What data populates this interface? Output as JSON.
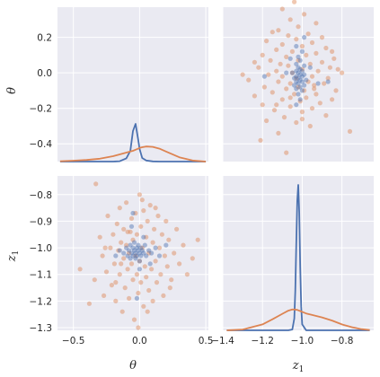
{
  "chart_data": {
    "type": "pairplot",
    "variables": [
      {
        "key": "theta",
        "label": "θ",
        "sub": ""
      },
      {
        "key": "z1",
        "label": "z",
        "sub": "1"
      }
    ],
    "series": [
      {
        "name": "",
        "color": "#4c72b0"
      },
      {
        "name": "",
        "color": "#dd8452"
      }
    ],
    "axes": {
      "theta": {
        "range": [
          -0.62,
          0.52
        ],
        "ticks": [
          -0.5,
          0.0,
          0.5
        ],
        "tick_labels": [
          "−0.5",
          "0.0",
          "0.5"
        ],
        "ylim": [
          -0.5,
          0.37
        ],
        "yticks": [
          -0.4,
          -0.2,
          0.0,
          0.2
        ],
        "ytick_labels": [
          "−0.4",
          "−0.2",
          "0.0",
          "0.2"
        ]
      },
      "z1": {
        "range": [
          -1.4,
          -0.64
        ],
        "ticks": [
          -1.4,
          -1.2,
          -1.0,
          -0.8
        ],
        "tick_labels": [
          "−1.4",
          "−1.2",
          "−1.0",
          "−0.8"
        ],
        "ylim": [
          -1.31,
          -0.73
        ],
        "yticks": [
          -1.3,
          -1.2,
          -1.1,
          -1.0,
          -0.9,
          -0.8
        ],
        "ytick_labels": [
          "−1.3",
          "−1.2",
          "−1.1",
          "−1.0",
          "−0.9",
          "−0.8"
        ]
      }
    },
    "kde_theta": {
      "x": [
        -0.6,
        -0.5,
        -0.4,
        -0.3,
        -0.2,
        -0.15,
        -0.1,
        -0.07,
        -0.05,
        -0.03,
        -0.01,
        0.0,
        0.02,
        0.05,
        0.1,
        0.15,
        0.2,
        0.3,
        0.4,
        0.5
      ],
      "series": [
        {
          "name": "",
          "density": [
            0,
            0,
            0,
            0,
            0,
            0.1,
            0.9,
            3.0,
            8.5,
            10.5,
            6.0,
            3.5,
            1.0,
            0.3,
            0.05,
            0,
            0,
            0,
            0,
            0
          ]
        },
        {
          "name": "",
          "density": [
            0.1,
            0.25,
            0.45,
            0.8,
            1.5,
            2.0,
            2.5,
            2.8,
            3.0,
            3.3,
            3.6,
            3.8,
            4.0,
            4.2,
            4.1,
            3.6,
            2.8,
            1.2,
            0.3,
            0.0
          ]
        }
      ]
    },
    "kde_z1": {
      "x": [
        -1.38,
        -1.3,
        -1.2,
        -1.15,
        -1.1,
        -1.07,
        -1.05,
        -1.04,
        -1.035,
        -1.03,
        -1.025,
        -1.02,
        -1.015,
        -1.01,
        -1.005,
        -1.0,
        -0.98,
        -0.95,
        -0.9,
        -0.85,
        -0.8,
        -0.75,
        -0.7,
        -0.66
      ],
      "series": [
        {
          "name": "",
          "density": [
            0,
            0,
            0,
            0,
            0,
            0,
            0.2,
            3,
            10,
            22,
            33,
            37,
            30,
            16,
            6,
            1.5,
            0,
            0,
            0,
            0,
            0,
            0,
            0,
            0
          ]
        },
        {
          "name": "",
          "density": [
            0,
            0.2,
            1.5,
            2.8,
            4.2,
            5.0,
            5.3,
            5.3,
            5.3,
            5.2,
            5.2,
            5.1,
            5.0,
            4.9,
            4.8,
            4.7,
            4.3,
            3.9,
            3.3,
            2.5,
            1.5,
            0.8,
            0.3,
            0.1
          ]
        }
      ]
    },
    "scatter": {
      "orange": [
        [
          -0.38,
          -1.21
        ],
        [
          -0.34,
          -1.12
        ],
        [
          -0.33,
          -0.76
        ],
        [
          -0.3,
          -0.96
        ],
        [
          -0.28,
          -1.03
        ],
        [
          -0.27,
          -1.18
        ],
        [
          -0.25,
          -1.09
        ],
        [
          -0.24,
          -0.88
        ],
        [
          -0.22,
          -1.0
        ],
        [
          -0.21,
          -1.14
        ],
        [
          -0.2,
          -0.95
        ],
        [
          -0.19,
          -1.06
        ],
        [
          -0.18,
          -1.2
        ],
        [
          -0.17,
          -0.91
        ],
        [
          -0.16,
          -1.01
        ],
        [
          -0.15,
          -0.85
        ],
        [
          -0.15,
          -1.1
        ],
        [
          -0.14,
          -0.98
        ],
        [
          -0.13,
          -1.24
        ],
        [
          -0.12,
          -1.04
        ],
        [
          -0.12,
          -0.93
        ],
        [
          -0.11,
          -1.15
        ],
        [
          -0.1,
          -0.99
        ],
        [
          -0.1,
          -0.83
        ],
        [
          -0.09,
          -1.08
        ],
        [
          -0.08,
          -1.02
        ],
        [
          -0.08,
          -1.19
        ],
        [
          -0.07,
          -0.94
        ],
        [
          -0.06,
          -1.06
        ],
        [
          -0.06,
          -0.89
        ],
        [
          -0.05,
          -1.12
        ],
        [
          -0.05,
          -0.97
        ],
        [
          -0.04,
          -1.27
        ],
        [
          -0.03,
          -1.03
        ],
        [
          -0.03,
          -0.87
        ],
        [
          -0.02,
          -1.1
        ],
        [
          -0.02,
          -0.95
        ],
        [
          -0.01,
          -1.17
        ],
        [
          0.0,
          -0.8
        ],
        [
          0.0,
          -1.05
        ],
        [
          0.01,
          -0.92
        ],
        [
          0.01,
          -1.13
        ],
        [
          0.02,
          -1.0
        ],
        [
          0.03,
          -0.86
        ],
        [
          0.03,
          -1.22
        ],
        [
          0.04,
          -1.07
        ],
        [
          0.05,
          -0.96
        ],
        [
          0.05,
          -1.11
        ],
        [
          0.06,
          -0.9
        ],
        [
          0.07,
          -1.02
        ],
        [
          0.07,
          -1.16
        ],
        [
          0.08,
          -0.84
        ],
        [
          0.09,
          -1.08
        ],
        [
          0.1,
          -0.98
        ],
        [
          0.1,
          -1.2
        ],
        [
          0.11,
          -0.93
        ],
        [
          0.12,
          -1.05
        ],
        [
          0.13,
          -1.13
        ],
        [
          0.14,
          -0.88
        ],
        [
          0.15,
          -1.0
        ],
        [
          0.16,
          -1.1
        ],
        [
          0.17,
          -0.95
        ],
        [
          0.18,
          -1.18
        ],
        [
          0.19,
          -1.03
        ],
        [
          0.2,
          -0.9
        ],
        [
          0.21,
          -1.07
        ],
        [
          0.22,
          -0.97
        ],
        [
          0.24,
          -1.12
        ],
        [
          0.26,
          -1.02
        ],
        [
          0.28,
          -0.93
        ],
        [
          0.3,
          -1.06
        ],
        [
          0.33,
          -0.99
        ],
        [
          0.36,
          -1.1
        ],
        [
          0.4,
          -1.04
        ],
        [
          0.44,
          -0.97
        ],
        [
          -0.45,
          -1.08
        ],
        [
          -0.26,
          -1.0
        ],
        [
          -0.18,
          -1.13
        ],
        [
          -0.09,
          -0.94
        ],
        [
          0.06,
          -1.24
        ],
        [
          0.12,
          -0.85
        ],
        [
          0.23,
          -1.15
        ],
        [
          -0.01,
          -1.3
        ],
        [
          -0.14,
          -1.06
        ],
        [
          0.02,
          -0.82
        ]
      ],
      "blue": [
        [
          -0.12,
          -1.02
        ],
        [
          -0.1,
          -1.0
        ],
        [
          -0.09,
          -1.03
        ],
        [
          -0.08,
          -1.01
        ],
        [
          -0.07,
          -0.99
        ],
        [
          -0.07,
          -1.04
        ],
        [
          -0.06,
          -1.02
        ],
        [
          -0.05,
          -1.0
        ],
        [
          -0.05,
          -1.03
        ],
        [
          -0.04,
          -1.01
        ],
        [
          -0.04,
          -0.98
        ],
        [
          -0.03,
          -1.02
        ],
        [
          -0.03,
          -1.04
        ],
        [
          -0.02,
          -1.0
        ],
        [
          -0.02,
          -1.03
        ],
        [
          -0.01,
          -1.01
        ],
        [
          -0.01,
          -0.99
        ],
        [
          0.0,
          -1.02
        ],
        [
          0.0,
          -1.05
        ],
        [
          0.01,
          -1.0
        ],
        [
          0.01,
          -1.03
        ],
        [
          0.02,
          -1.01
        ],
        [
          0.03,
          -1.02
        ],
        [
          0.04,
          -0.99
        ],
        [
          0.05,
          -1.03
        ],
        [
          0.07,
          -1.01
        ],
        [
          0.09,
          -1.02
        ],
        [
          0.12,
          -1.0
        ],
        [
          0.15,
          -1.03
        ],
        [
          -0.15,
          -1.01
        ],
        [
          -0.18,
          -1.03
        ],
        [
          0.2,
          -0.99
        ],
        [
          -0.06,
          -0.92
        ],
        [
          0.0,
          -1.08
        ],
        [
          0.03,
          -0.96
        ],
        [
          -0.02,
          -1.19
        ],
        [
          -0.05,
          -0.87
        ],
        [
          0.08,
          -1.06
        ]
      ]
    }
  }
}
